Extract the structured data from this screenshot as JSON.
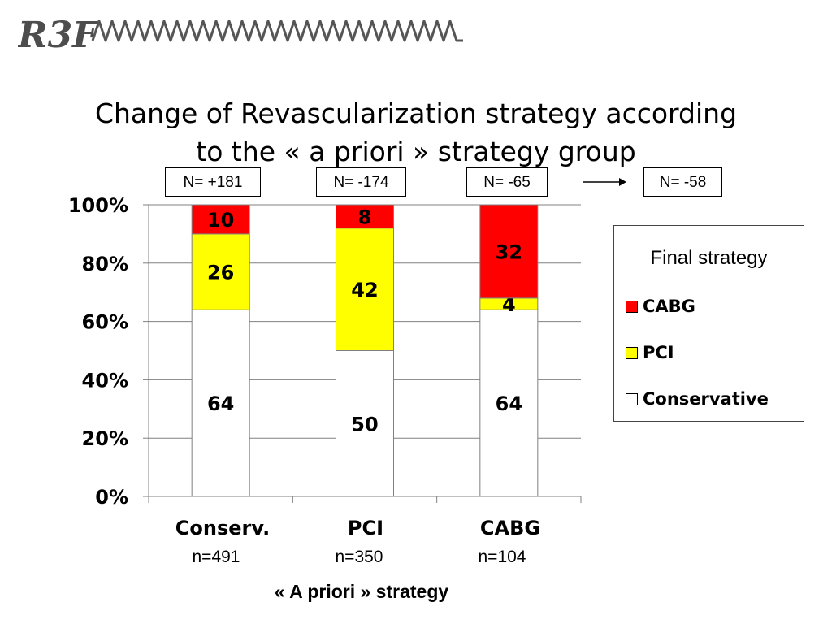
{
  "logo": {
    "text": "R3F",
    "color": "#4d4d4d"
  },
  "title": {
    "line1": "Change of Revascularization strategy according",
    "line2": "to the « a priori » strategy group"
  },
  "n_boxes": [
    {
      "label": "N= +181"
    },
    {
      "label": "N= -174"
    },
    {
      "label": "N= -65"
    },
    {
      "label": "N= -58"
    }
  ],
  "legend": {
    "title": "Final strategy",
    "items": [
      {
        "label": "CABG",
        "color": "#ff0000"
      },
      {
        "label": "PCI",
        "color": "#ffff00"
      },
      {
        "label": "Conservative",
        "color": "#ffffff"
      }
    ]
  },
  "x_axis": {
    "title": "« A priori » strategy",
    "categories": [
      {
        "label": "Conserv.",
        "n": "n=491"
      },
      {
        "label": "PCI",
        "n": "n=350"
      },
      {
        "label": "CABG",
        "n": "n=104"
      }
    ]
  },
  "chart_data": {
    "type": "bar",
    "stacked": true,
    "categories": [
      "Conserv.",
      "PCI",
      "CABG"
    ],
    "series": [
      {
        "name": "Conservative",
        "color": "#ffffff",
        "values": [
          64,
          50,
          64
        ]
      },
      {
        "name": "PCI",
        "color": "#ffff00",
        "values": [
          26,
          42,
          4
        ]
      },
      {
        "name": "CABG",
        "color": "#ff0000",
        "values": [
          10,
          8,
          32
        ]
      }
    ],
    "ylim": [
      0,
      100
    ],
    "yticks": [
      "0%",
      "20%",
      "40%",
      "60%",
      "80%",
      "100%"
    ],
    "grid": true,
    "legend_position": "right",
    "xlabel": "« A priori » strategy",
    "ylabel": ""
  }
}
